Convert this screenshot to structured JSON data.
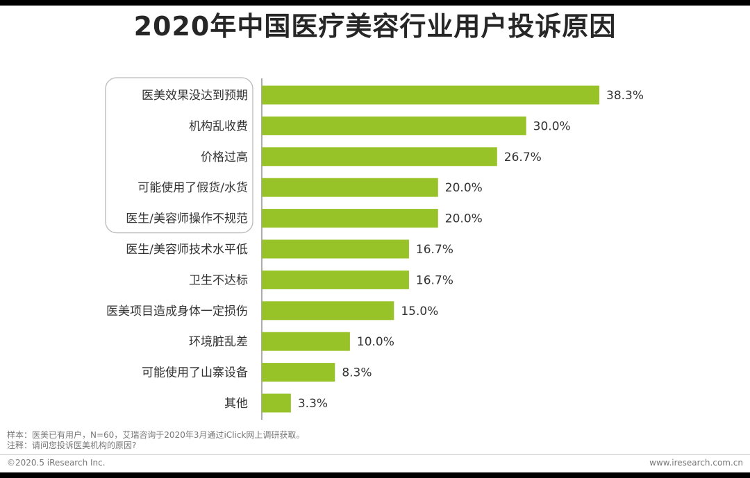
{
  "header": {
    "title": "2020年中国医疗美容行业用户投诉原因"
  },
  "chart_data": {
    "type": "bar",
    "orientation": "horizontal",
    "title": "2020年中国医疗美容行业用户投诉原因",
    "categories": [
      "医美效果没达到预期",
      "机构乱收费",
      "价格过高",
      "可能使用了假货/水货",
      "医生/美容师操作不规范",
      "医生/美容师技术水平低",
      "卫生不达标",
      "医美项目造成身体一定损伤",
      "环境脏乱差",
      "可能使用了山寨设备",
      "其他"
    ],
    "values": [
      38.3,
      30.0,
      26.7,
      20.0,
      20.0,
      16.7,
      16.7,
      15.0,
      10.0,
      8.3,
      3.3
    ],
    "value_labels": [
      "38.3%",
      "30.0%",
      "26.7%",
      "20.0%",
      "20.0%",
      "16.7%",
      "16.7%",
      "15.0%",
      "10.0%",
      "8.3%",
      "3.3%"
    ],
    "xlim": [
      0,
      40
    ],
    "grid": false,
    "bar_color": "#97c228",
    "highlighted_categories": 5
  },
  "footer": {
    "note1": "样本：医美已有用户，N=60，艾瑞咨询于2020年3月通过iClick网上调研获取。",
    "note2": "注释：请问您投诉医美机构的原因?",
    "copyright": "©2020.5 iResearch Inc.",
    "website": "www.iresearch.com.cn"
  }
}
